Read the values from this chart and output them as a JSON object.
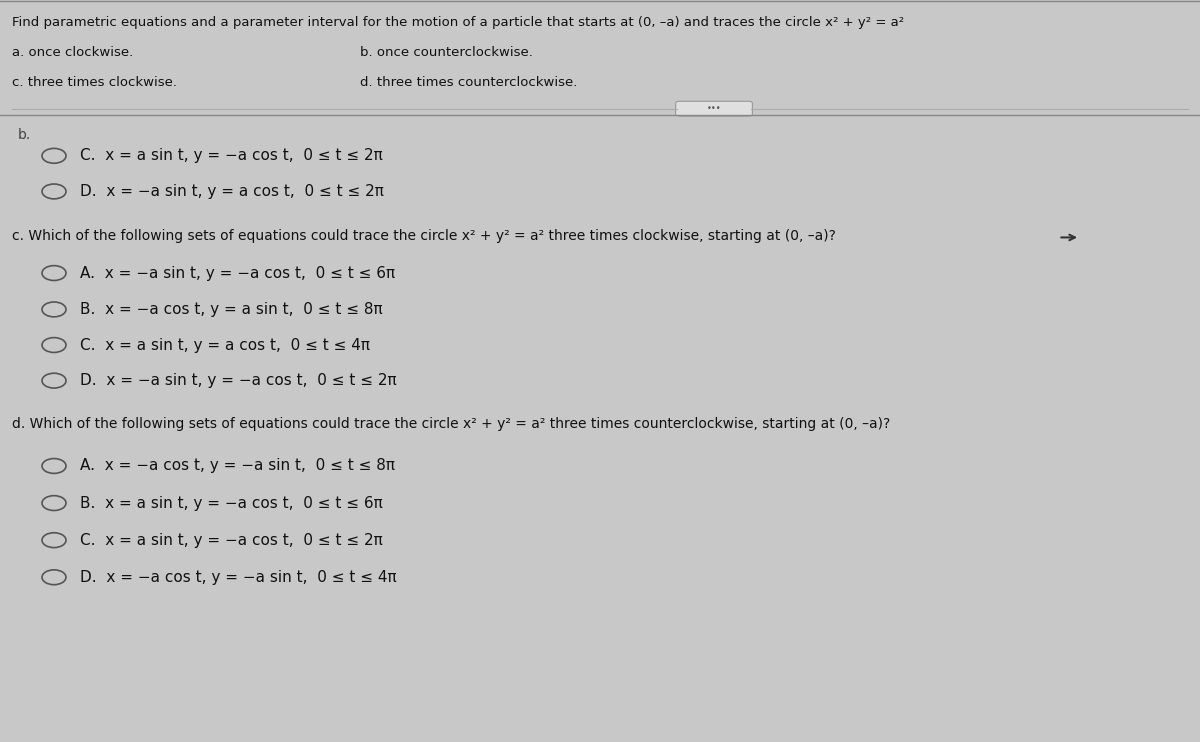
{
  "bg_color": "#c8c8c8",
  "title_line": "Find parametric equations and a parameter interval for the motion of a particle that starts at (0, –a) and traces the circle x² + y² = a²",
  "sub_items": [
    {
      "label": "a.",
      "text": "once clockwise."
    },
    {
      "label": "b.",
      "text": "once counterclockwise."
    },
    {
      "label": "c.",
      "text": "three times clockwise."
    },
    {
      "label": "d.",
      "text": "three times counterclockwise."
    }
  ],
  "section_b_label": "b.",
  "part_b_options": [
    {
      "letter": "C.",
      "eq": "x = a sin t, y = −a cos t,  0 ≤ t ≤ 2π"
    },
    {
      "letter": "D.",
      "eq": "x = −a sin t, y = a cos t,  0 ≤ t ≤ 2π"
    }
  ],
  "part_c_question": "c. Which of the following sets of equations could trace the circle x² + y² = a² three times clockwise, starting at (0, –a)?",
  "part_c_options": [
    {
      "letter": "A.",
      "eq": "x = −a sin t, y = −a cos t,  0 ≤ t ≤ 6π"
    },
    {
      "letter": "B.",
      "eq": "x = −a cos t, y = a sin t,  0 ≤ t ≤ 8π"
    },
    {
      "letter": "C.",
      "eq": "x = a sin t, y = a cos t,  0 ≤ t ≤ 4π"
    },
    {
      "letter": "D.",
      "eq": "x = −a sin t, y = −a cos t,  0 ≤ t ≤ 2π"
    }
  ],
  "part_d_question": "d. Which of the following sets of equations could trace the circle x² + y² = a² three times counterclockwise, starting at (0, –a)?",
  "part_d_options": [
    {
      "letter": "A.",
      "eq": "x = −a cos t, y = −a sin t,  0 ≤ t ≤ 8π"
    },
    {
      "letter": "B.",
      "eq": "x = a sin t, y = −a cos t,  0 ≤ t ≤ 6π"
    },
    {
      "letter": "C.",
      "eq": "x = a sin t, y = −a cos t,  0 ≤ t ≤ 2π"
    },
    {
      "letter": "D.",
      "eq": "x = −a cos t, y = −a sin t,  0 ≤ t ≤ 4π"
    }
  ]
}
